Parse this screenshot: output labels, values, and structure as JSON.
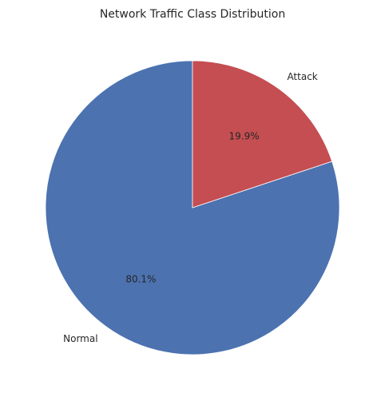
{
  "chart_data": {
    "type": "pie",
    "title": "Network Traffic Class Distribution",
    "slices": [
      {
        "label": "Normal",
        "value": 80.1,
        "pct_label": "80.1%",
        "color": "#4c72b0"
      },
      {
        "label": "Attack",
        "value": 19.9,
        "pct_label": "19.9%",
        "color": "#c44e52"
      }
    ],
    "start_angle_deg": 90,
    "direction": "counterclockwise"
  }
}
